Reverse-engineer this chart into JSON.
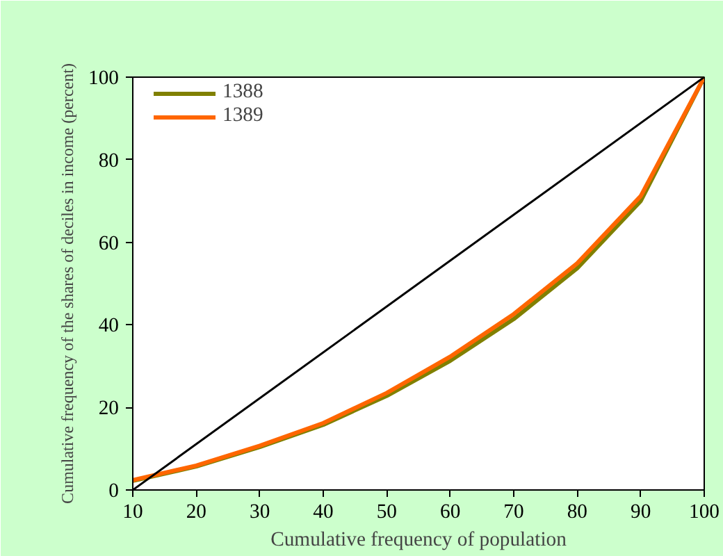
{
  "chart_data": {
    "type": "line",
    "xlabel": "Cumulative frequency of population",
    "ylabel": "Cumulative frequency of the shares of deciles in income (percent)",
    "x": [
      10,
      20,
      30,
      40,
      50,
      60,
      70,
      80,
      90,
      100
    ],
    "series": [
      {
        "name": "1388",
        "color": "#808000",
        "values": [
          2.2,
          5.7,
          10.4,
          15.8,
          22.8,
          31.3,
          41.4,
          53.7,
          70,
          100
        ]
      },
      {
        "name": "1389",
        "color": "#ff6600",
        "values": [
          2.4,
          5.9,
          10.7,
          16.2,
          23.5,
          32.3,
          42.6,
          54.9,
          71.2,
          100
        ]
      },
      {
        "color": "#000000",
        "x": [
          10,
          100
        ],
        "values": [
          0,
          100
        ]
      }
    ],
    "xlim": [
      10,
      100
    ],
    "ylim": [
      0,
      100
    ],
    "xticks": [
      10,
      20,
      30,
      40,
      50,
      60,
      70,
      80,
      90,
      100
    ],
    "yticks": [
      0,
      20,
      40,
      60,
      80,
      100
    ],
    "grid": false,
    "legend": "top left",
    "marker": "none",
    "line_style": "solid"
  }
}
